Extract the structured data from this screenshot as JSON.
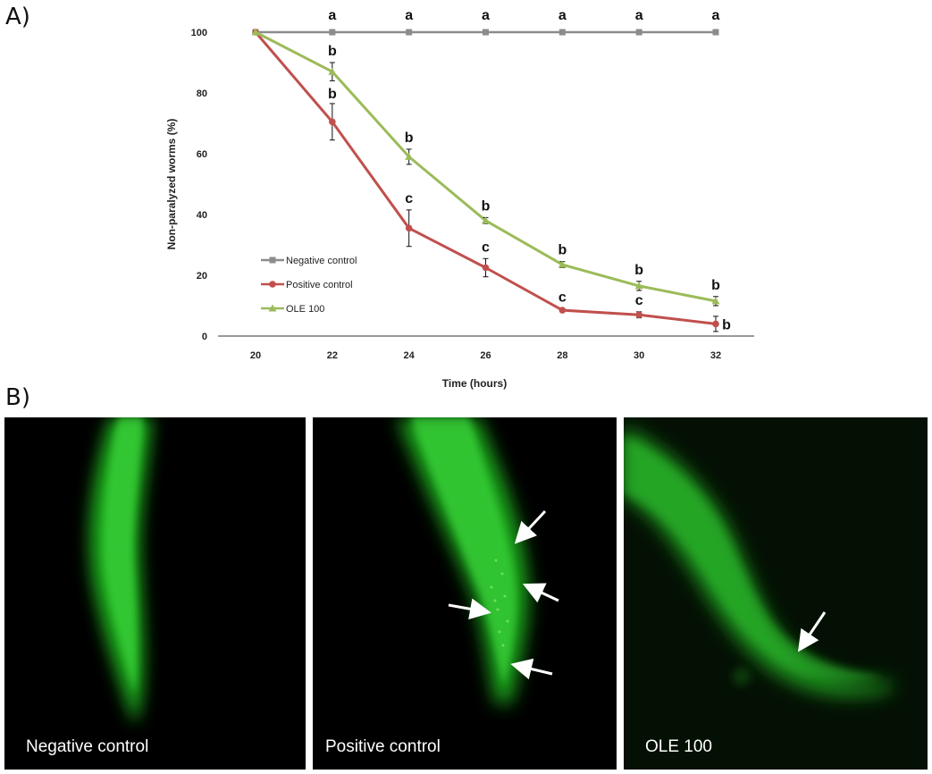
{
  "panel_a_label": "A)",
  "panel_b_label": "B)",
  "chart_data": {
    "type": "line",
    "xlabel": "Time (hours)",
    "ylabel": "Non-paralyzed worms (%)",
    "x": [
      20,
      22,
      24,
      26,
      28,
      30,
      32
    ],
    "xlim": [
      20,
      32
    ],
    "ylim": [
      0,
      100
    ],
    "yticks": [
      0,
      20,
      40,
      60,
      80,
      100
    ],
    "grid": false,
    "legend_position": "lower-left",
    "series": [
      {
        "name": "Negative control",
        "color": "#8c8c8c",
        "marker": "square",
        "values": [
          100,
          100,
          100,
          100,
          100,
          100,
          100
        ],
        "errors": [
          0,
          0,
          0,
          0,
          0,
          0,
          0
        ],
        "letters": [
          "",
          "a",
          "a",
          "a",
          "a",
          "a",
          "a"
        ]
      },
      {
        "name": "Positive control",
        "color": "#c0504d",
        "marker": "circle",
        "values": [
          100,
          70.5,
          35.5,
          22.5,
          8.5,
          7,
          4
        ],
        "errors": [
          0,
          6,
          6,
          3,
          0.5,
          1,
          2.5
        ],
        "letters": [
          "",
          "b",
          "c",
          "c",
          "c",
          "c",
          "b"
        ]
      },
      {
        "name": "OLE 100",
        "color": "#9bbb59",
        "marker": "triangle",
        "values": [
          100,
          87,
          59,
          38,
          23.5,
          16.5,
          11.5
        ],
        "errors": [
          0,
          3,
          2.5,
          1,
          1,
          1.5,
          1.5
        ],
        "letters": [
          "",
          "b",
          "b",
          "b",
          "b",
          "b",
          "b"
        ]
      }
    ]
  },
  "micrographs": [
    {
      "caption": "Negative control",
      "arrows": 0
    },
    {
      "caption": "Positive control",
      "arrows": 4
    },
    {
      "caption": "OLE 100",
      "arrows": 1
    }
  ]
}
